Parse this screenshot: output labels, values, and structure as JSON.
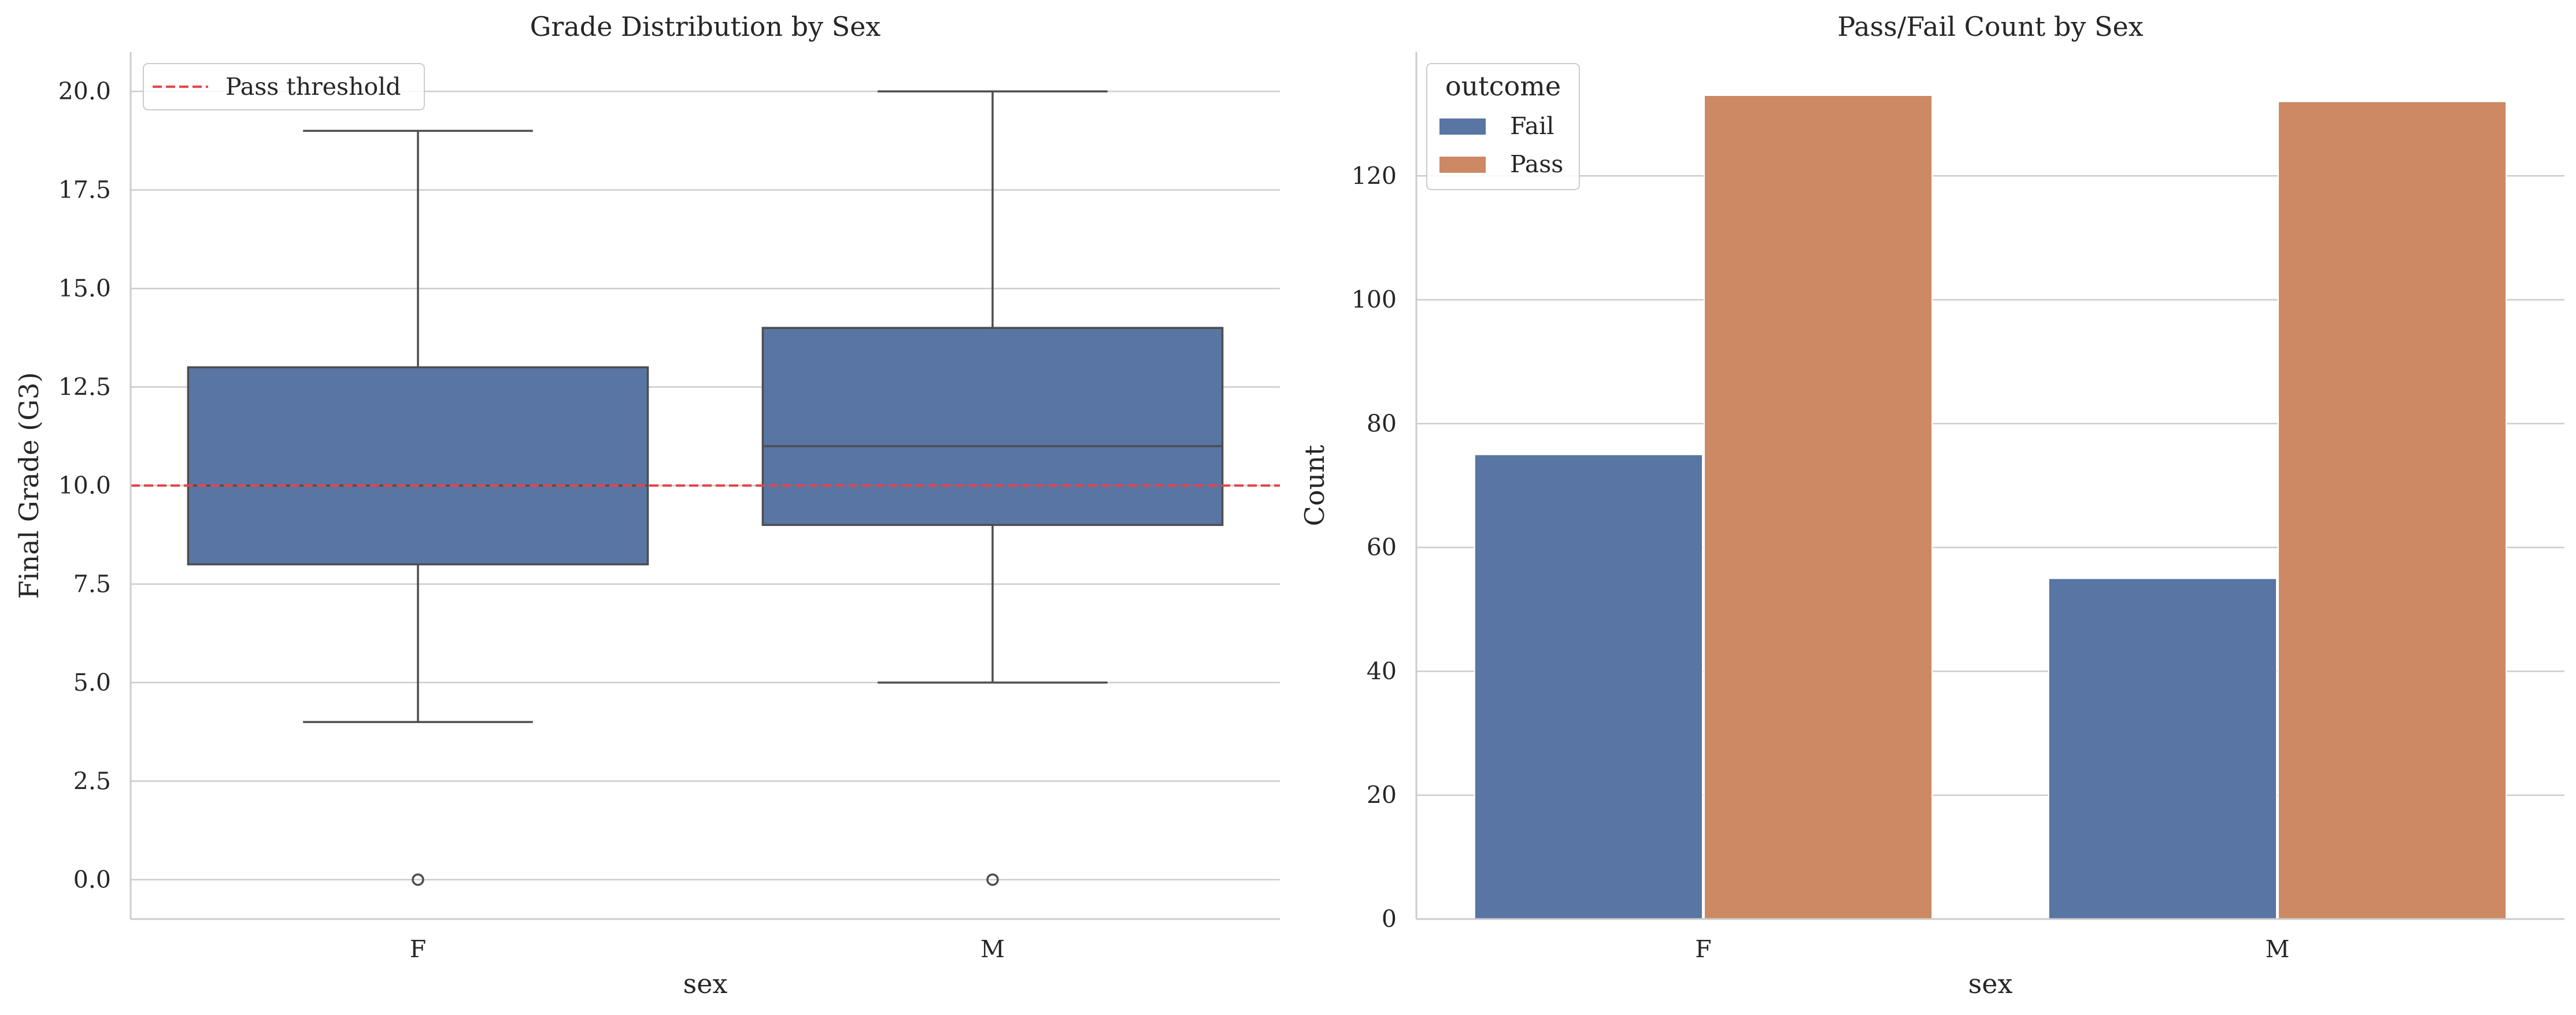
{
  "chart_data": [
    {
      "type": "box",
      "title": "Grade Distribution by Sex",
      "xlabel": "sex",
      "ylabel": "Final Grade (G3)",
      "ylim": [
        -1,
        21
      ],
      "yticks": [
        0.0,
        2.5,
        5.0,
        7.5,
        10.0,
        12.5,
        15.0,
        17.5,
        20.0
      ],
      "ytick_labels": [
        "0.0",
        "2.5",
        "5.0",
        "7.5",
        "10.0",
        "12.5",
        "15.0",
        "17.5",
        "20.0"
      ],
      "categories": [
        "F",
        "M"
      ],
      "boxes": [
        {
          "category": "F",
          "whisker_low": 4,
          "q1": 8,
          "median": 10,
          "q3": 13,
          "whisker_high": 19,
          "outliers": [
            0
          ]
        },
        {
          "category": "M",
          "whisker_low": 5,
          "q1": 9,
          "median": 11,
          "q3": 14,
          "whisker_high": 20,
          "outliers": [
            0
          ]
        }
      ],
      "reference_line": {
        "y": 10,
        "name": "Pass threshold",
        "color": "#e8434a",
        "style": "dashed"
      },
      "box_color": "#5875a4",
      "grid": "horizontal",
      "legend": {
        "position": "top-left",
        "entries": [
          "Pass threshold"
        ]
      }
    },
    {
      "type": "bar",
      "title": "Pass/Fail Count by Sex",
      "xlabel": "sex",
      "ylabel": "Count",
      "ylim": [
        0,
        140
      ],
      "yticks": [
        0,
        20,
        40,
        60,
        80,
        100,
        120
      ],
      "ytick_labels": [
        "0",
        "20",
        "40",
        "60",
        "80",
        "100",
        "120"
      ],
      "categories": [
        "F",
        "M"
      ],
      "series": [
        {
          "name": "Fail",
          "values": [
            75,
            55
          ],
          "color": "#5875a4"
        },
        {
          "name": "Pass",
          "values": [
            133,
            132
          ],
          "color": "#cc8963"
        }
      ],
      "grid": "horizontal",
      "legend": {
        "position": "top-left",
        "title": "outcome",
        "entries": [
          "Fail",
          "Pass"
        ]
      }
    }
  ]
}
